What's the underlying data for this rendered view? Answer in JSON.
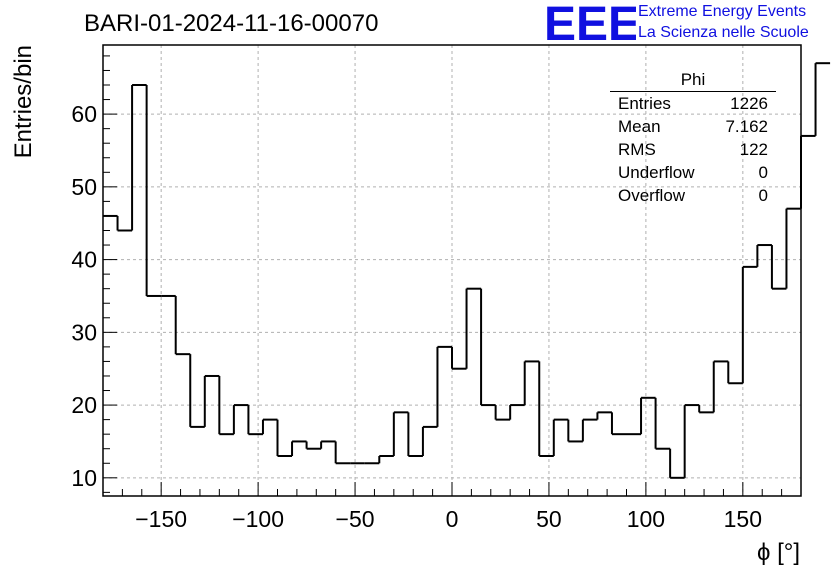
{
  "page": {
    "title": "BARI-01-2024-11-16-00070",
    "logo": {
      "mark": "EEE",
      "line1": "Extreme Energy Events",
      "line2": "La Scienza nelle Scuole",
      "color": "#1010e0"
    }
  },
  "stats": {
    "name": "Phi",
    "rows": [
      {
        "label": "Entries",
        "value": "1226"
      },
      {
        "label": "Mean",
        "value": "7.162"
      },
      {
        "label": "RMS",
        "value": "122"
      },
      {
        "label": "Underflow",
        "value": "0"
      },
      {
        "label": "Overflow",
        "value": "0"
      }
    ]
  },
  "chart_data": {
    "type": "bar",
    "style": "step-histogram",
    "xlabel": "ϕ [°]",
    "ylabel": "Entries/bin",
    "xlim": [
      -180,
      180
    ],
    "ylim": [
      7.5,
      69.5
    ],
    "xticks": [
      -150,
      -100,
      -50,
      0,
      50,
      100,
      150
    ],
    "xtick_labels": [
      "−150",
      "−100",
      "−50",
      "0",
      "50",
      "100",
      "150"
    ],
    "yticks": [
      10,
      20,
      30,
      40,
      50,
      60
    ],
    "bin_width": 7.5,
    "grid": true,
    "line_color": "#000000",
    "grid_color": "#b0b0b0",
    "values": [
      46,
      44,
      64,
      35,
      35,
      27,
      17,
      24,
      16,
      20,
      16,
      18,
      13,
      15,
      14,
      15,
      12,
      12,
      12,
      13,
      19,
      13,
      17,
      28,
      25,
      36,
      20,
      18,
      20,
      26,
      13,
      18,
      15,
      18,
      19,
      16,
      16,
      21,
      14,
      10,
      20,
      19,
      26,
      23,
      39,
      42,
      36,
      47,
      57,
      67
    ]
  }
}
